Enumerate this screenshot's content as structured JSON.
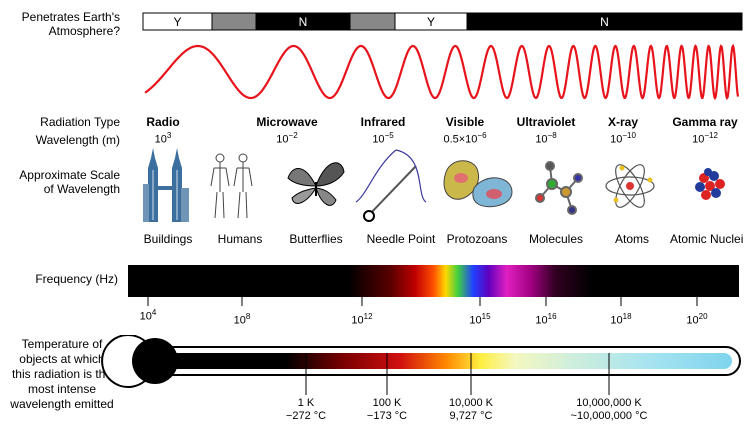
{
  "atmosphere": {
    "label_line1": "Penetrates Earth's",
    "label_line2": "Atmosphere?",
    "segments": [
      {
        "text": "Y",
        "color": "#ffffff"
      },
      {
        "text": "",
        "color": "#888888"
      },
      {
        "text": "N",
        "color": "#000000"
      },
      {
        "text": "",
        "color": "#888888"
      },
      {
        "text": "Y",
        "color": "#ffffff"
      },
      {
        "text": "N",
        "color": "#000000"
      }
    ]
  },
  "wave_color": "#e8141c",
  "row_labels": {
    "radiation_type": "Radiation Type",
    "wavelength": "Wavelength (m)",
    "scale_line1": "Approximate Scale",
    "scale_line2": "of Wavelength",
    "frequency": "Frequency (Hz)",
    "temp_line1": "Temperature of",
    "temp_line2": "objects at which",
    "temp_line3": "this radiation is the",
    "temp_line4": "most intense",
    "temp_line5": "wavelength emitted"
  },
  "radiation_types": [
    {
      "name": "Radio",
      "wl_base": "10",
      "wl_exp": "3"
    },
    {
      "name": "Microwave",
      "wl_base": "10",
      "wl_exp": "−2"
    },
    {
      "name": "Infrared",
      "wl_base": "10",
      "wl_exp": "−5"
    },
    {
      "name": "Visible",
      "wl_base": "0.5×10",
      "wl_exp": "−6"
    },
    {
      "name": "Ultraviolet",
      "wl_base": "10",
      "wl_exp": "−8"
    },
    {
      "name": "X-ray",
      "wl_base": "10",
      "wl_exp": "−10"
    },
    {
      "name": "Gamma ray",
      "wl_base": "10",
      "wl_exp": "−12"
    }
  ],
  "scale_objects": [
    {
      "label": "Buildings",
      "icon": "buildings-icon"
    },
    {
      "label": "Humans",
      "icon": "humans-icon"
    },
    {
      "label": "Butterflies",
      "icon": "butterfly-icon"
    },
    {
      "label": "Needle Point",
      "icon": "needle-icon"
    },
    {
      "label": "Protozoans",
      "icon": "protozoan-icon"
    },
    {
      "label": "Molecules",
      "icon": "molecule-icon"
    },
    {
      "label": "Atoms",
      "icon": "atom-icon"
    },
    {
      "label": "Atomic Nuclei",
      "icon": "nucleus-icon"
    }
  ],
  "frequency_ticks": [
    {
      "base": "10",
      "exp": "4"
    },
    {
      "base": "10",
      "exp": "8"
    },
    {
      "base": "10",
      "exp": "12"
    },
    {
      "base": "10",
      "exp": "15"
    },
    {
      "base": "10",
      "exp": "16"
    },
    {
      "base": "10",
      "exp": "18"
    },
    {
      "base": "10",
      "exp": "20"
    }
  ],
  "temperature_ticks": [
    {
      "kelvin": "1 K",
      "celsius": "−272 °C"
    },
    {
      "kelvin": "100 K",
      "celsius": "−173 °C"
    },
    {
      "kelvin": "10,000 K",
      "celsius": "9,727 °C"
    },
    {
      "kelvin": "10,000,000 K",
      "celsius": "~10,000,000 °C"
    }
  ]
}
